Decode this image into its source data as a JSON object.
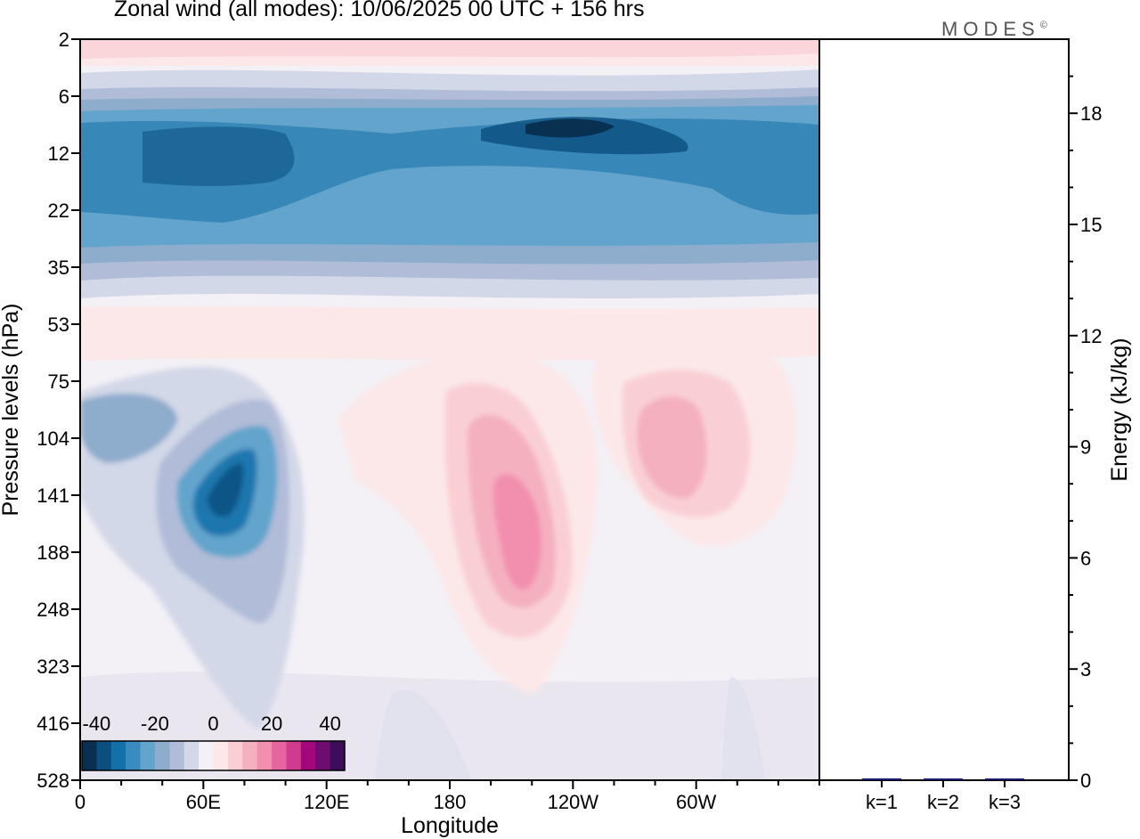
{
  "title": "Zonal wind (all modes):  10/06/2025  00 UTC  + 156 hrs",
  "brand": "MODES",
  "brand_mark": "©",
  "chart_data": [
    {
      "type": "heatmap",
      "title": "Zonal wind (all modes):  10/06/2025  00 UTC  + 156 hrs",
      "xlabel": "Longitude",
      "ylabel": "Pressure levels (hPa)",
      "x_ticks": [
        "0",
        "60E",
        "120E",
        "180",
        "120W",
        "60W"
      ],
      "x_tick_degrees": [
        0,
        60,
        120,
        180,
        240,
        300
      ],
      "xlim": [
        0,
        360
      ],
      "y_ticks": [
        "2",
        "6",
        "12",
        "22",
        "35",
        "53",
        "75",
        "104",
        "141",
        "188",
        "248",
        "323",
        "416",
        "528"
      ],
      "y_scale": "log",
      "ylim": [
        528,
        2
      ],
      "colorbar": {
        "ticks": [
          "-40",
          "-20",
          "0",
          "20",
          "40"
        ],
        "range": [
          -40,
          40
        ],
        "step": 5,
        "colors": [
          "#083050",
          "#0a4f80",
          "#1470a8",
          "#3a8cc0",
          "#62a4cc",
          "#8eaccc",
          "#b1bcd8",
          "#d3d8e8",
          "#f3f0f6",
          "#fce8e8",
          "#f9cfd4",
          "#f4b0bf",
          "#f38fae",
          "#e7659f",
          "#d13b8e",
          "#a1087a",
          "#6e0c72",
          "#3d0c5b"
        ]
      },
      "features": [
        {
          "label": "stratospheric easterly band",
          "lon_range": [
            0,
            360
          ],
          "p_range": [
            8,
            35
          ],
          "value": -30
        },
        {
          "label": "easterly jet core",
          "lon_center": 230,
          "p_center": 10,
          "value": -40
        },
        {
          "label": "westerly layer",
          "lon_range": [
            0,
            360
          ],
          "p_range": [
            40,
            75
          ],
          "value": 5
        },
        {
          "label": "tropospheric easterly",
          "lon_center": 70,
          "p_center": 141,
          "value": -35
        },
        {
          "label": "tropospheric westerly",
          "lon_center": 210,
          "p_center": 188,
          "value": 20
        },
        {
          "label": "tropospheric westerly",
          "lon_center": 285,
          "p_center": 115,
          "value": 12
        }
      ]
    },
    {
      "type": "bar",
      "ylabel": "Energy (kJ/kg)",
      "categories": [
        "k=1",
        "k=2",
        "k=3"
      ],
      "values": [
        0.05,
        0.03,
        0.01
      ],
      "ylim": [
        0,
        20
      ],
      "y_ticks": [
        "0",
        "3",
        "6",
        "9",
        "12",
        "15",
        "18"
      ],
      "y_tick_values": [
        0,
        3,
        6,
        9,
        12,
        15,
        18
      ],
      "bar_color": "#1a1a6e"
    }
  ]
}
